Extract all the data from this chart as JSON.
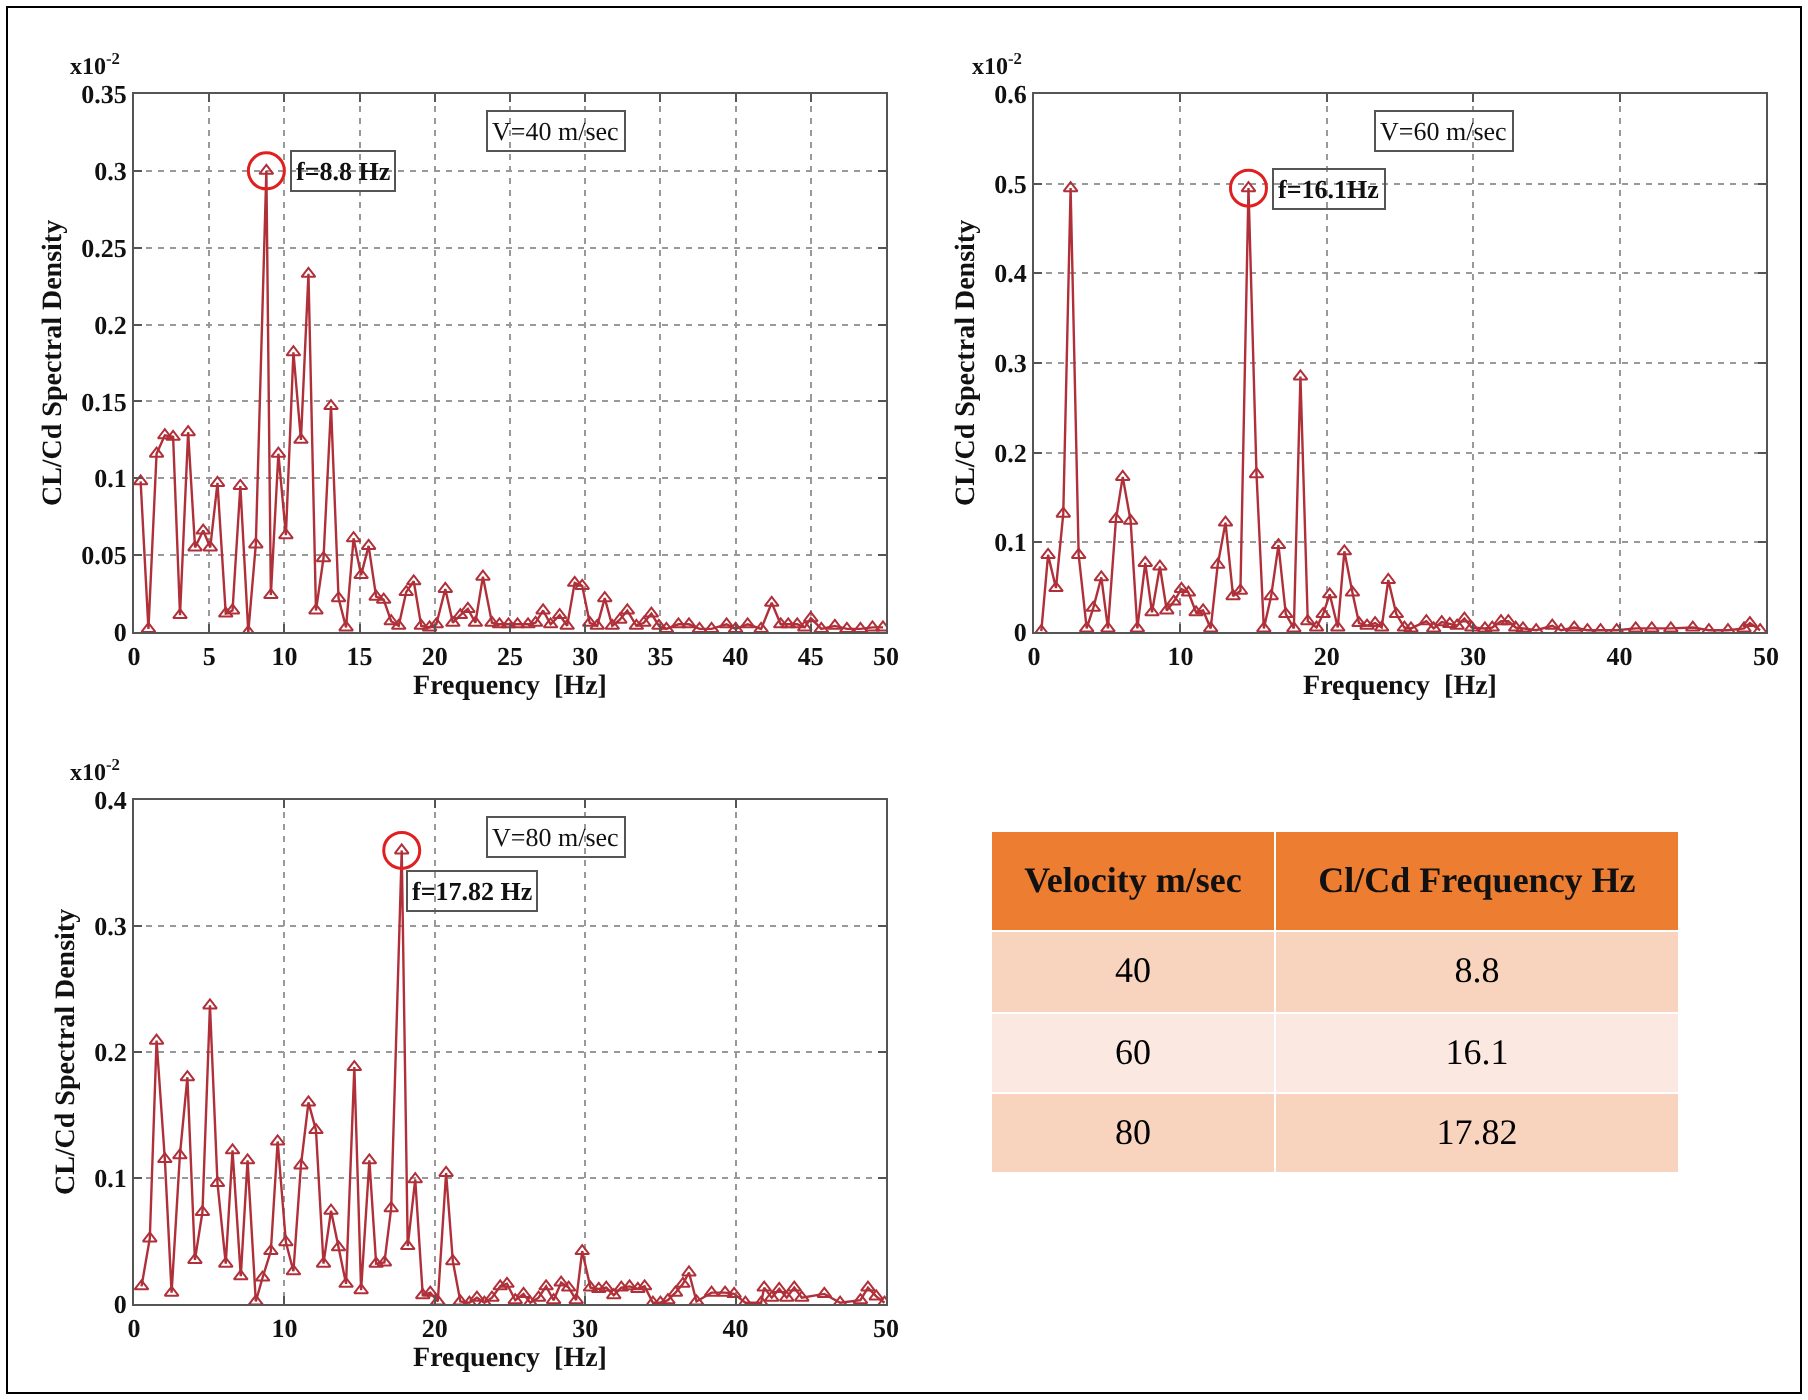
{
  "chart_data": [
    {
      "type": "line",
      "xlabel": "Frequency  [Hz]",
      "ylabel": "CL/Cd Spectral Density",
      "annotations": [
        "x10$^{-2}$",
        "V=40 m/sec",
        {
          "text": "f=8.8 Hz",
          "x": 8.8,
          "y": 0.3
        }
      ],
      "xlim": [
        0,
        50
      ],
      "xticks": [
        0,
        5,
        10,
        15,
        20,
        25,
        30,
        35,
        40,
        45,
        50
      ],
      "ylim": [
        0,
        0.35
      ],
      "yticks": [
        0,
        0.05,
        0.1,
        0.15,
        0.2,
        0.25,
        0.3,
        0.35
      ],
      "grid": true,
      "marker": "triangle",
      "line_style": "solid",
      "x": [
        0.44,
        0.96,
        1.5,
        2.05,
        2.6,
        3.06,
        3.6,
        4.06,
        4.6,
        5.07,
        5.55,
        6.1,
        6.55,
        7.07,
        7.6,
        8.1,
        8.8,
        9.1,
        9.6,
        10.1,
        10.6,
        11.1,
        11.6,
        12.1,
        12.6,
        13.1,
        13.6,
        14.1,
        14.6,
        15.1,
        15.6,
        16.1,
        16.6,
        17.1,
        17.6,
        18.1,
        18.6,
        19.1,
        19.65,
        20.1,
        20.7,
        21.2,
        21.7,
        22.2,
        22.7,
        23.2,
        23.8,
        24.3,
        24.9,
        25.5,
        26.2,
        26.7,
        27.2,
        27.7,
        28.3,
        28.8,
        29.3,
        29.8,
        30.3,
        30.8,
        31.3,
        31.8,
        32.3,
        32.8,
        33.4,
        33.9,
        34.4,
        34.9,
        35.4,
        36.2,
        36.9,
        37.6,
        38.4,
        39.4,
        40.0,
        40.8,
        41.7,
        42.4,
        43.0,
        43.5,
        44.1,
        44.6,
        45.0,
        45.7,
        46.6,
        47.4,
        48.3,
        49.1,
        49.8
      ],
      "series": [
        {
          "color": "#b0303a",
          "values": [
            0.098,
            0.002,
            0.116,
            0.128,
            0.127,
            0.011,
            0.13,
            0.055,
            0.066,
            0.055,
            0.097,
            0.012,
            0.014,
            0.095,
            0,
            0.057,
            0.3,
            0.024,
            0.116,
            0.063,
            0.182,
            0.125,
            0.233,
            0.014,
            0.048,
            0.147,
            0.022,
            0.003,
            0.061,
            0.037,
            0.056,
            0.023,
            0.021,
            0.007,
            0.004,
            0.026,
            0.033,
            0.004,
            0.003,
            0.005,
            0.028,
            0.006,
            0.011,
            0.015,
            0.006,
            0.036,
            0.006,
            0.005,
            0.005,
            0.005,
            0.005,
            0.006,
            0.014,
            0.005,
            0.011,
            0.004,
            0.032,
            0.03,
            0.006,
            0.004,
            0.022,
            0.004,
            0.008,
            0.014,
            0.004,
            0.006,
            0.012,
            0.004,
            0.002,
            0.005,
            0.005,
            0.002,
            0.002,
            0.005,
            0.002,
            0.005,
            0.002,
            0.019,
            0.005,
            0.005,
            0.005,
            0.003,
            0.009,
            0.002,
            0.004,
            0.002,
            0.002,
            0.003,
            0.003
          ]
        }
      ]
    },
    {
      "type": "line",
      "xlabel": "Frequency  [Hz]",
      "ylabel": "CL/Cd Spectral Density",
      "annotations": [
        "x10$^{-2}$",
        "V=60 m/sec",
        {
          "text": "f=16.1Hz",
          "x": 14.65,
          "y": 0.495
        }
      ],
      "xlim": [
        0,
        50
      ],
      "xticks": [
        0,
        10,
        20,
        30,
        40,
        50
      ],
      "ylim": [
        0,
        0.6
      ],
      "yticks": [
        0,
        0.1,
        0.2,
        0.3,
        0.4,
        0.5,
        0.6
      ],
      "grid": true,
      "marker": "triangle",
      "line_style": "solid",
      "x": [
        0.5,
        0.96,
        1.5,
        2.0,
        2.5,
        3.05,
        3.6,
        4.05,
        4.6,
        5.05,
        5.6,
        6.06,
        6.6,
        7.06,
        7.6,
        8.06,
        8.6,
        9.07,
        9.55,
        10.07,
        10.55,
        11.07,
        11.55,
        12.07,
        12.55,
        13.08,
        13.6,
        14.1,
        14.65,
        15.2,
        15.7,
        16.2,
        16.7,
        17.2,
        17.75,
        18.2,
        18.7,
        19.3,
        19.75,
        20.2,
        20.75,
        21.2,
        21.75,
        22.2,
        22.75,
        23.3,
        23.75,
        24.2,
        24.75,
        25.3,
        25.75,
        26.8,
        27.3,
        27.85,
        28.4,
        28.9,
        29.4,
        29.9,
        30.8,
        31.3,
        31.9,
        32.4,
        32.9,
        33.4,
        34.3,
        35.4,
        36.0,
        36.9,
        37.8,
        38.7,
        39.8,
        41.1,
        42.2,
        43.5,
        45.0,
        46.1,
        47.4,
        48.5,
        48.9,
        49.6
      ],
      "series": [
        {
          "color": "#b0303a",
          "values": [
            0.001,
            0.086,
            0.049,
            0.132,
            0.495,
            0.086,
            0.004,
            0.027,
            0.061,
            0.004,
            0.126,
            0.173,
            0.124,
            0.004,
            0.077,
            0.022,
            0.073,
            0.024,
            0.034,
            0.048,
            0.044,
            0.022,
            0.024,
            0.004,
            0.075,
            0.122,
            0.04,
            0.046,
            0.495,
            0.176,
            0.004,
            0.04,
            0.097,
            0.02,
            0.004,
            0.285,
            0.012,
            0.005,
            0.02,
            0.042,
            0.005,
            0.09,
            0.044,
            0.01,
            0.007,
            0.01,
            0.005,
            0.058,
            0.02,
            0.005,
            0.004,
            0.012,
            0.004,
            0.011,
            0.009,
            0.007,
            0.015,
            0.005,
            0.004,
            0.005,
            0.012,
            0.012,
            0.005,
            0.004,
            0.002,
            0.007,
            0.002,
            0.005,
            0.002,
            0.002,
            0.002,
            0.004,
            0.004,
            0.004,
            0.005,
            0.002,
            0.002,
            0.004,
            0.01,
            0.002
          ]
        }
      ]
    },
    {
      "type": "line",
      "xlabel": "Frequency  [Hz]",
      "ylabel": "CL/Cd Spectral Density",
      "annotations": [
        "x10$^{-2}$",
        "V=80 m/sec",
        {
          "text": "f=17.82 Hz",
          "x": 17.8,
          "y": 0.36
        }
      ],
      "xlim": [
        0,
        50
      ],
      "xticks": [
        0,
        10,
        20,
        30,
        40,
        50
      ],
      "ylim": [
        0,
        0.4
      ],
      "yticks": [
        0,
        0.1,
        0.2,
        0.3,
        0.4
      ],
      "grid": true,
      "marker": "triangle",
      "line_style": "solid",
      "x": [
        0.5,
        1.05,
        1.5,
        2.05,
        2.5,
        3.05,
        3.55,
        4.05,
        4.55,
        5.05,
        5.55,
        6.1,
        6.55,
        7.1,
        7.55,
        8.1,
        8.55,
        9.1,
        9.55,
        10.1,
        10.6,
        11.1,
        11.6,
        12.1,
        12.6,
        13.1,
        13.6,
        14.1,
        14.65,
        15.1,
        15.65,
        16.1,
        16.65,
        17.1,
        17.8,
        18.2,
        18.7,
        19.2,
        19.7,
        20.2,
        20.75,
        21.2,
        21.7,
        22.3,
        22.8,
        23.3,
        23.8,
        24.35,
        24.8,
        25.35,
        25.9,
        26.35,
        26.9,
        27.4,
        27.9,
        28.4,
        28.9,
        29.4,
        29.8,
        30.35,
        30.9,
        31.4,
        31.9,
        32.4,
        32.95,
        33.5,
        33.95,
        34.5,
        35.0,
        35.5,
        36.0,
        36.5,
        36.9,
        37.4,
        38.4,
        39.3,
        39.9,
        40.65,
        41.7,
        41.9,
        42.4,
        42.9,
        43.4,
        43.9,
        44.4,
        45.9,
        46.95,
        48.3,
        48.8,
        49.35,
        49.9
      ],
      "series": [
        {
          "color": "#b0303a",
          "values": [
            0.014,
            0.052,
            0.209,
            0.115,
            0.009,
            0.118,
            0.18,
            0.035,
            0.073,
            0.237,
            0.096,
            0.032,
            0.122,
            0.022,
            0.114,
            0.002,
            0.021,
            0.042,
            0.129,
            0.049,
            0.026,
            0.11,
            0.16,
            0.138,
            0.032,
            0.074,
            0.045,
            0.016,
            0.188,
            0.011,
            0.114,
            0.032,
            0.033,
            0.076,
            0.36,
            0.046,
            0.099,
            0.007,
            0.009,
            0.002,
            0.104,
            0.034,
            0.002,
            0.001,
            0.005,
            0.001,
            0.005,
            0.014,
            0.016,
            0.003,
            0.008,
            0.001,
            0.005,
            0.014,
            0.003,
            0.017,
            0.013,
            0.003,
            0.042,
            0.013,
            0.012,
            0.013,
            0.007,
            0.013,
            0.014,
            0.012,
            0.014,
            0.001,
            0.001,
            0.003,
            0.009,
            0.016,
            0.025,
            0.002,
            0.009,
            0.009,
            0.008,
            0.001,
            0.001,
            0.013,
            0.005,
            0.012,
            0.005,
            0.013,
            0.005,
            0.008,
            0.001,
            0.003,
            0.013,
            0.006,
            0.001
          ]
        }
      ]
    },
    {
      "type": "other",
      "annotations": [
        "Velocity m/sec",
        "Cl/Cd Frequency Hz",
        "40",
        "8.8",
        "60",
        "16.1",
        "80",
        "17.82"
      ]
    }
  ]
}
